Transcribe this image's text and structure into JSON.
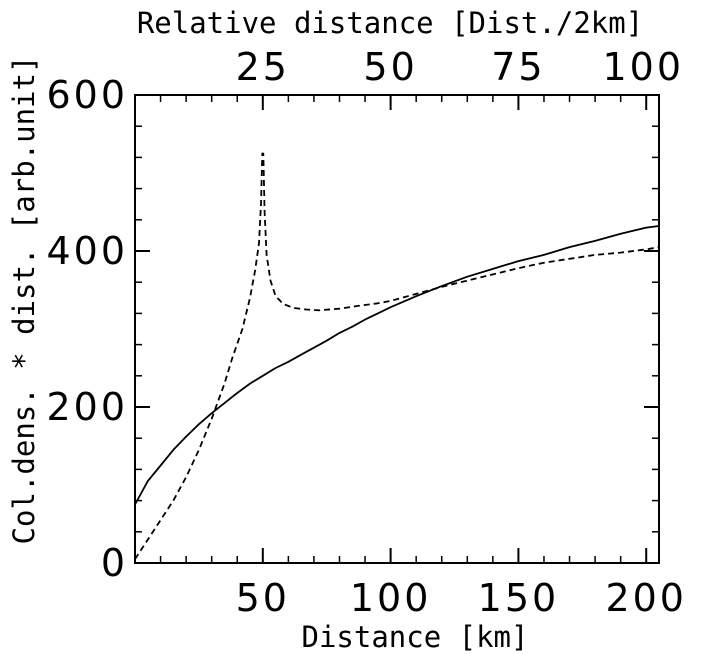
{
  "chart_data": {
    "type": "line",
    "title": "",
    "xlabel": "Distance [km]",
    "x2label": "Relative distance [Dist./2km]",
    "ylabel": "Col.dens. * dist. [arb.unit]",
    "xlim": [
      0,
      205
    ],
    "ylim": [
      0,
      600
    ],
    "x2lim": [
      0,
      102.5
    ],
    "x_ticks": [
      50,
      100,
      150,
      200
    ],
    "x_tick_labels": [
      "50",
      "100",
      "150",
      "200"
    ],
    "x2_ticks": [
      25,
      50,
      75,
      100
    ],
    "x2_tick_labels": [
      "25",
      "50",
      "75",
      "100"
    ],
    "y_ticks": [
      0,
      200,
      400,
      600
    ],
    "y_tick_labels": [
      "0",
      "200",
      "400",
      "600"
    ],
    "x_minor_step": 10,
    "y_minor_step": 40,
    "grid": false,
    "legend": "none",
    "color": "#000000",
    "series": [
      {
        "style": "solid",
        "x": [
          0,
          5,
          10,
          15,
          20,
          25,
          30,
          35,
          40,
          45,
          50,
          55,
          60,
          65,
          70,
          75,
          80,
          85,
          90,
          95,
          100,
          110,
          120,
          130,
          140,
          150,
          160,
          170,
          180,
          190,
          200,
          205
        ],
        "y": [
          75,
          105,
          125,
          145,
          162,
          178,
          192,
          205,
          218,
          230,
          240,
          250,
          258,
          267,
          276,
          285,
          295,
          303,
          312,
          320,
          328,
          342,
          355,
          367,
          377,
          387,
          395,
          405,
          413,
          422,
          430,
          432
        ]
      },
      {
        "style": "dashed",
        "x": [
          0,
          5,
          10,
          15,
          20,
          25,
          30,
          35,
          38,
          42,
          45,
          47,
          48.5,
          49.3,
          49.8,
          50.2,
          50.7,
          51.5,
          53,
          55,
          58,
          62,
          67,
          72,
          80,
          88,
          95,
          100,
          110,
          120,
          130,
          140,
          150,
          160,
          170,
          180,
          190,
          200,
          205
        ],
        "y": [
          5,
          30,
          55,
          80,
          110,
          145,
          185,
          230,
          262,
          300,
          340,
          375,
          410,
          460,
          525,
          525,
          450,
          395,
          362,
          342,
          332,
          327,
          325,
          324,
          326,
          330,
          333,
          336,
          345,
          354,
          362,
          370,
          378,
          385,
          390,
          395,
          398,
          402,
          405
        ]
      }
    ]
  }
}
